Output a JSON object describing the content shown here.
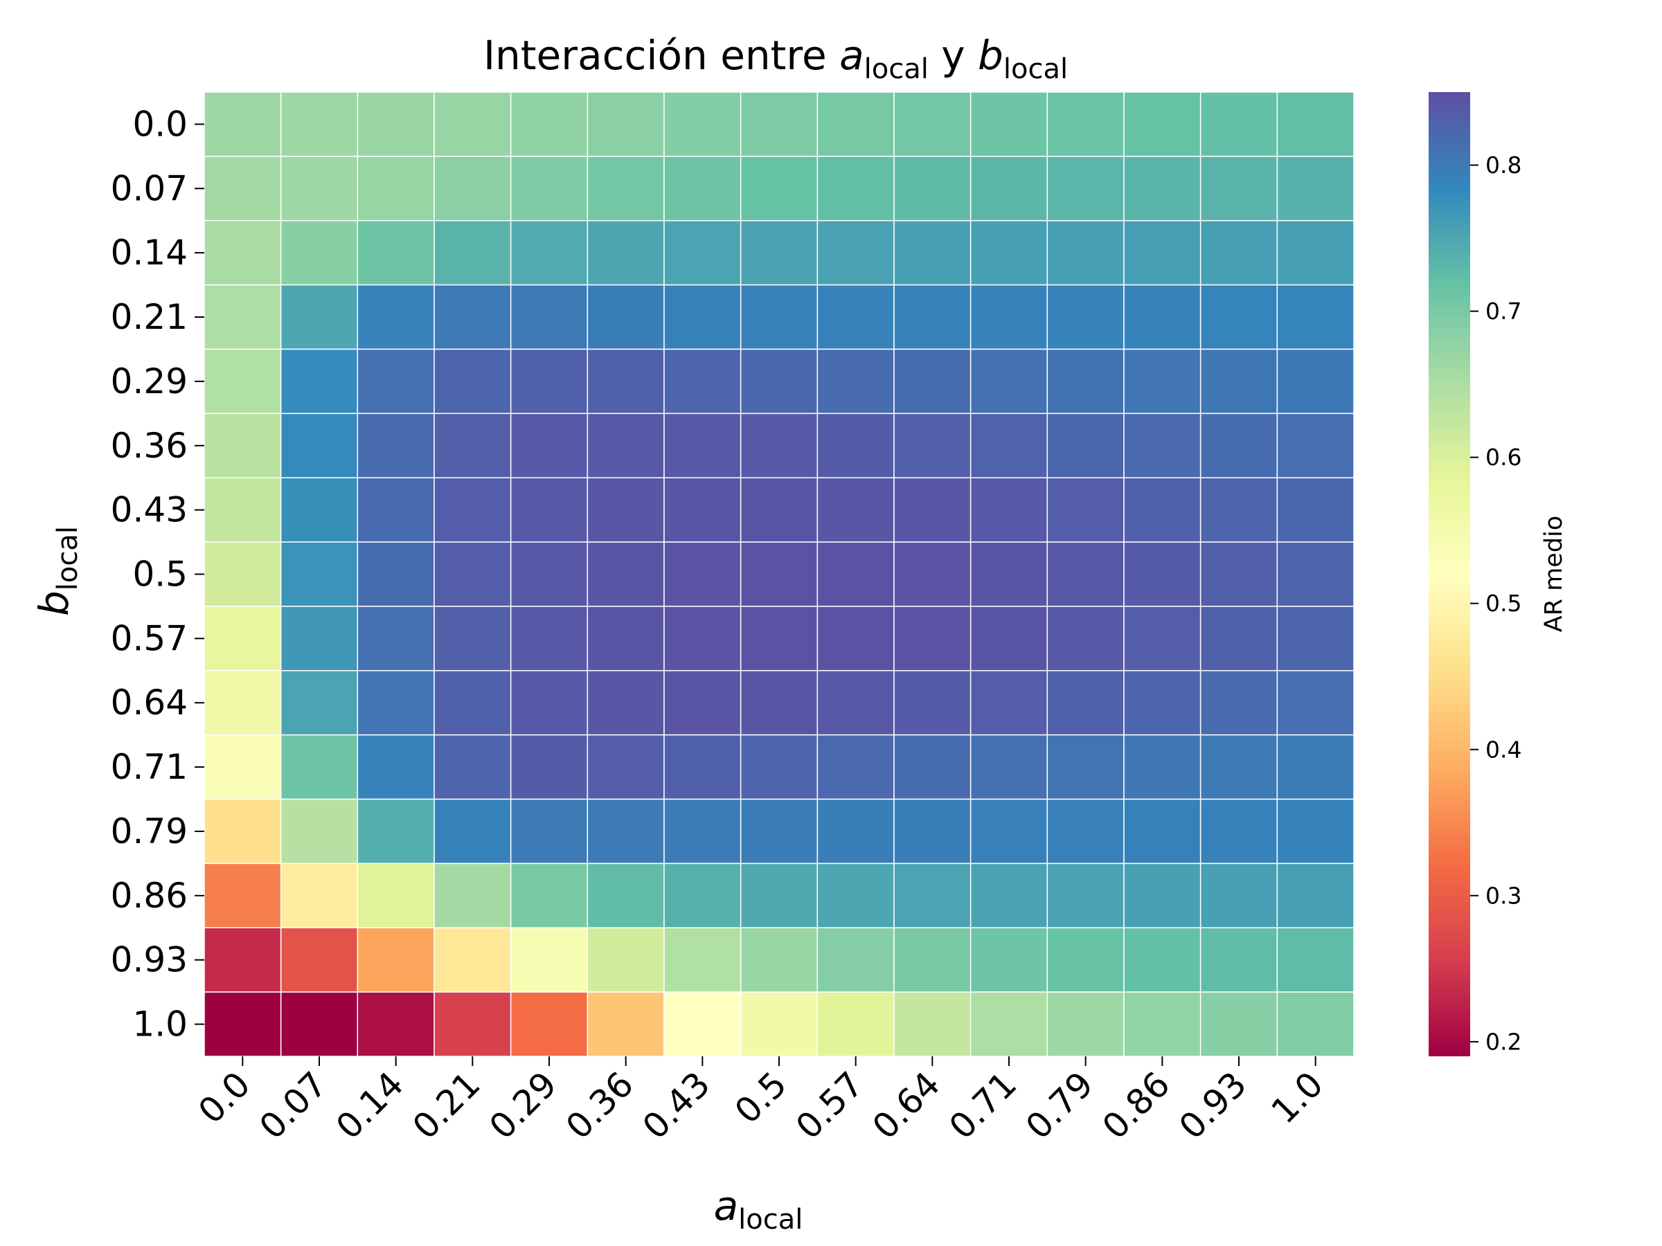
{
  "chart_data": {
    "type": "heatmap",
    "title": {
      "prefix": "Interacción entre ",
      "a_base": "a",
      "a_sub": "local",
      "mid": " y ",
      "b_base": "b",
      "b_sub": "local"
    },
    "xlabel": {
      "base": "a",
      "sub": "local"
    },
    "ylabel": {
      "base": "b",
      "sub": "local"
    },
    "x_categories": [
      "0.0",
      "0.07",
      "0.14",
      "0.21",
      "0.29",
      "0.36",
      "0.43",
      "0.5",
      "0.57",
      "0.64",
      "0.71",
      "0.79",
      "0.86",
      "0.93",
      "1.0"
    ],
    "y_categories": [
      "0.0",
      "0.07",
      "0.14",
      "0.21",
      "0.29",
      "0.36",
      "0.43",
      "0.5",
      "0.57",
      "0.64",
      "0.71",
      "0.79",
      "0.86",
      "0.93",
      "1.0"
    ],
    "values": [
      [
        0.665,
        0.665,
        0.668,
        0.672,
        0.678,
        0.684,
        0.69,
        0.696,
        0.702,
        0.706,
        0.71,
        0.714,
        0.718,
        0.72,
        0.722
      ],
      [
        0.66,
        0.664,
        0.672,
        0.684,
        0.695,
        0.705,
        0.712,
        0.718,
        0.722,
        0.727,
        0.73,
        0.732,
        0.734,
        0.735,
        0.736
      ],
      [
        0.655,
        0.685,
        0.712,
        0.735,
        0.745,
        0.75,
        0.752,
        0.754,
        0.755,
        0.756,
        0.757,
        0.757,
        0.758,
        0.758,
        0.758
      ],
      [
        0.65,
        0.75,
        0.79,
        0.8,
        0.8,
        0.796,
        0.792,
        0.792,
        0.791,
        0.79,
        0.79,
        0.79,
        0.79,
        0.789,
        0.789
      ],
      [
        0.645,
        0.78,
        0.812,
        0.825,
        0.83,
        0.83,
        0.825,
        0.822,
        0.818,
        0.815,
        0.812,
        0.81,
        0.806,
        0.804,
        0.802
      ],
      [
        0.635,
        0.782,
        0.818,
        0.833,
        0.838,
        0.84,
        0.84,
        0.838,
        0.835,
        0.832,
        0.828,
        0.823,
        0.82,
        0.816,
        0.814
      ],
      [
        0.625,
        0.776,
        0.818,
        0.834,
        0.84,
        0.842,
        0.843,
        0.843,
        0.842,
        0.841,
        0.838,
        0.834,
        0.83,
        0.826,
        0.822
      ],
      [
        0.61,
        0.772,
        0.816,
        0.834,
        0.84,
        0.843,
        0.845,
        0.846,
        0.846,
        0.845,
        0.843,
        0.84,
        0.836,
        0.832,
        0.826
      ],
      [
        0.58,
        0.766,
        0.812,
        0.832,
        0.839,
        0.843,
        0.845,
        0.846,
        0.847,
        0.846,
        0.844,
        0.84,
        0.834,
        0.83,
        0.824
      ],
      [
        0.56,
        0.752,
        0.806,
        0.83,
        0.838,
        0.842,
        0.844,
        0.843,
        0.84,
        0.836,
        0.834,
        0.83,
        0.824,
        0.818,
        0.814
      ],
      [
        0.535,
        0.71,
        0.79,
        0.826,
        0.835,
        0.834,
        0.83,
        0.826,
        0.82,
        0.815,
        0.812,
        0.808,
        0.804,
        0.8,
        0.798
      ],
      [
        0.455,
        0.64,
        0.74,
        0.79,
        0.8,
        0.8,
        0.798,
        0.797,
        0.796,
        0.795,
        0.794,
        0.793,
        0.792,
        0.791,
        0.79
      ],
      [
        0.34,
        0.48,
        0.59,
        0.66,
        0.7,
        0.725,
        0.738,
        0.746,
        0.75,
        0.752,
        0.754,
        0.754,
        0.756,
        0.757,
        0.758
      ],
      [
        0.235,
        0.285,
        0.38,
        0.47,
        0.54,
        0.61,
        0.645,
        0.67,
        0.688,
        0.7,
        0.71,
        0.716,
        0.72,
        0.724,
        0.726
      ],
      [
        0.19,
        0.19,
        0.205,
        0.26,
        0.32,
        0.42,
        0.52,
        0.555,
        0.59,
        0.625,
        0.65,
        0.665,
        0.675,
        0.685,
        0.69
      ]
    ],
    "colormap": "Spectral",
    "vmin": 0.19,
    "vmax": 0.85,
    "colorbar": {
      "label": "AR medio",
      "ticks": [
        0.2,
        0.3,
        0.4,
        0.5,
        0.6,
        0.7,
        0.8
      ],
      "tick_labels": [
        "0.2",
        "0.3",
        "0.4",
        "0.5",
        "0.6",
        "0.7",
        "0.8"
      ]
    },
    "grid": false,
    "cell_borders": "#ffffff"
  }
}
